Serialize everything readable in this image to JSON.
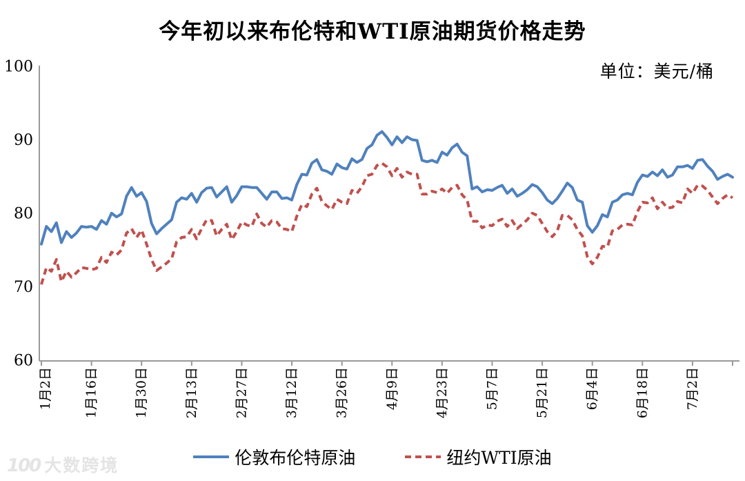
{
  "title": "今年初以来布伦特和WTI原油期货价格走势",
  "unit_label": "单位：美元/桶",
  "watermark": {
    "icon": "100",
    "text": "大数跨境"
  },
  "colors": {
    "brent_line": "#4F81BD",
    "wti_line": "#C0504D",
    "axis": "#999999",
    "text": "#000000",
    "watermark": "#e4e4e4"
  },
  "legend": [
    {
      "name": "伦敦布伦特原油",
      "color": "#4F81BD",
      "style": "solid"
    },
    {
      "name": "纽约WTI原油",
      "color": "#C0504D",
      "style": "dashed"
    }
  ],
  "chart_data": {
    "type": "line",
    "title": "今年初以来布伦特和WTI原油期货价格走势",
    "xlabel": "",
    "ylabel": "单位：美元/桶",
    "ylim": [
      60,
      100
    ],
    "y_ticks": [
      60,
      70,
      80,
      90,
      100
    ],
    "x_tick_labels": [
      "1月2日",
      "1月16日",
      "1月30日",
      "2月13日",
      "2月27日",
      "3月12日",
      "3月26日",
      "4月9日",
      "4月23日",
      "5月7日",
      "5月21日",
      "6月4日",
      "6月18日",
      "7月2日"
    ],
    "points_per_tick": 10,
    "grid": false,
    "legend_position": "bottom",
    "series": [
      {
        "name": "伦敦布伦特原油",
        "color": "#4F81BD",
        "dash": "solid",
        "values": [
          75.9,
          78.3,
          77.6,
          78.8,
          76.1,
          77.6,
          76.8,
          77.4,
          78.3,
          78.2,
          78.3,
          77.9,
          79.1,
          78.6,
          80.1,
          79.6,
          80.0,
          82.4,
          83.6,
          82.4,
          82.9,
          81.7,
          78.7,
          77.3,
          78.0,
          78.6,
          79.2,
          81.6,
          82.2,
          82.0,
          82.8,
          81.6,
          82.9,
          83.5,
          83.6,
          82.3,
          83.0,
          83.7,
          81.6,
          82.5,
          83.7,
          83.7,
          83.6,
          83.6,
          82.8,
          82.0,
          83.0,
          83.0,
          82.1,
          82.2,
          81.9,
          84.0,
          85.4,
          85.3,
          86.9,
          87.4,
          86.0,
          85.8,
          85.4,
          86.8,
          86.3,
          86.1,
          87.5,
          87.0,
          87.4,
          88.9,
          89.4,
          90.7,
          91.2,
          90.4,
          89.4,
          90.5,
          89.7,
          90.5,
          90.1,
          90.0,
          87.3,
          87.1,
          87.3,
          87.0,
          88.4,
          88.0,
          89.0,
          89.5,
          88.4,
          87.9,
          83.4,
          83.7,
          83.0,
          83.3,
          83.2,
          83.6,
          83.9,
          82.8,
          83.4,
          82.4,
          82.8,
          83.3,
          84.0,
          83.7,
          82.9,
          81.9,
          81.4,
          82.1,
          83.1,
          84.2,
          83.6,
          81.9,
          81.6,
          78.4,
          77.5,
          78.4,
          79.9,
          79.6,
          81.6,
          81.9,
          82.6,
          82.8,
          82.6,
          84.3,
          85.3,
          85.1,
          85.7,
          85.2,
          86.0,
          85.0,
          85.3,
          86.4,
          86.4,
          86.6,
          86.2,
          87.3,
          87.4,
          86.5,
          85.8,
          84.7,
          85.1,
          85.4,
          85.0
        ]
      },
      {
        "name": "纽约WTI原油",
        "color": "#C0504D",
        "dash": "dashed",
        "values": [
          70.4,
          72.7,
          72.2,
          73.8,
          70.8,
          72.2,
          71.4,
          72.0,
          72.7,
          72.6,
          72.4,
          72.6,
          74.1,
          73.4,
          74.8,
          74.4,
          75.1,
          77.4,
          78.0,
          76.8,
          77.8,
          75.9,
          73.8,
          72.3,
          72.8,
          73.3,
          73.9,
          76.2,
          76.8,
          76.9,
          77.9,
          76.6,
          78.0,
          79.2,
          79.1,
          77.0,
          77.9,
          78.6,
          76.5,
          77.6,
          78.9,
          78.5,
          78.3,
          80.0,
          78.7,
          78.2,
          79.1,
          78.9,
          78.0,
          77.9,
          77.6,
          79.7,
          81.3,
          81.0,
          82.7,
          83.5,
          81.7,
          81.1,
          80.6,
          82.0,
          81.6,
          81.4,
          83.2,
          82.8,
          83.7,
          85.2,
          85.4,
          86.6,
          86.9,
          86.4,
          85.2,
          86.2,
          85.0,
          85.7,
          85.4,
          85.4,
          82.7,
          82.7,
          83.1,
          82.9,
          83.4,
          82.8,
          83.6,
          83.9,
          82.6,
          81.9,
          79.0,
          79.0,
          78.1,
          78.5,
          78.4,
          79.0,
          79.3,
          78.3,
          79.1,
          78.0,
          78.6,
          79.2,
          80.1,
          79.8,
          78.7,
          77.6,
          76.9,
          77.7,
          79.8,
          79.8,
          79.2,
          77.9,
          77.0,
          74.2,
          73.2,
          74.1,
          75.6,
          75.5,
          77.7,
          77.9,
          78.5,
          78.6,
          78.5,
          80.3,
          81.6,
          81.5,
          82.2,
          80.7,
          81.6,
          80.8,
          80.9,
          81.7,
          81.5,
          83.4,
          82.8,
          83.9,
          83.8,
          83.2,
          82.3,
          81.4,
          82.1,
          82.6,
          82.2
        ]
      }
    ]
  }
}
